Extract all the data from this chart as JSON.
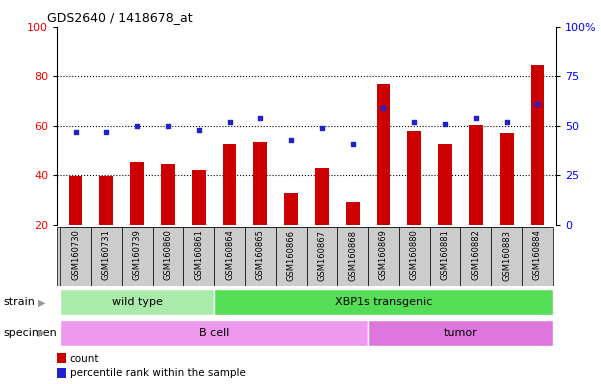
{
  "title": "GDS2640 / 1418678_at",
  "categories": [
    "GSM160730",
    "GSM160731",
    "GSM160739",
    "GSM160860",
    "GSM160861",
    "GSM160864",
    "GSM160865",
    "GSM160866",
    "GSM160867",
    "GSM160868",
    "GSM160869",
    "GSM160880",
    "GSM160881",
    "GSM160882",
    "GSM160883",
    "GSM160884"
  ],
  "count_values": [
    39.5,
    39.5,
    45.5,
    44.5,
    42.0,
    52.5,
    53.5,
    33.0,
    43.0,
    29.0,
    77.0,
    58.0,
    52.5,
    60.5,
    57.0,
    84.5
  ],
  "percentile_values": [
    47,
    47,
    50,
    50,
    48,
    52,
    54,
    43,
    49,
    41,
    59,
    52,
    51,
    54,
    52,
    61
  ],
  "ylim_left": [
    20,
    100
  ],
  "ylim_right": [
    0,
    100
  ],
  "yticks_left": [
    20,
    40,
    60,
    80,
    100
  ],
  "yticks_right": [
    0,
    25,
    50,
    75,
    100
  ],
  "ytick_labels_right": [
    "0",
    "25",
    "50",
    "75",
    "100%"
  ],
  "bar_color": "#cc0000",
  "dot_color": "#2222cc",
  "strain_groups": [
    {
      "label": "wild type",
      "start": 0,
      "end": 4,
      "color": "#aaeaaa"
    },
    {
      "label": "XBP1s transgenic",
      "start": 5,
      "end": 15,
      "color": "#55dd55"
    }
  ],
  "specimen_groups": [
    {
      "label": "B cell",
      "start": 0,
      "end": 9,
      "color": "#ee99ee"
    },
    {
      "label": "tumor",
      "start": 10,
      "end": 15,
      "color": "#dd77dd"
    }
  ],
  "legend_items": [
    {
      "color": "#cc0000",
      "label": "count"
    },
    {
      "color": "#2222cc",
      "label": "percentile rank within the sample"
    }
  ],
  "bar_width": 0.45,
  "tick_area_color": "#cccccc",
  "grid_yticks": [
    40,
    60,
    80
  ]
}
